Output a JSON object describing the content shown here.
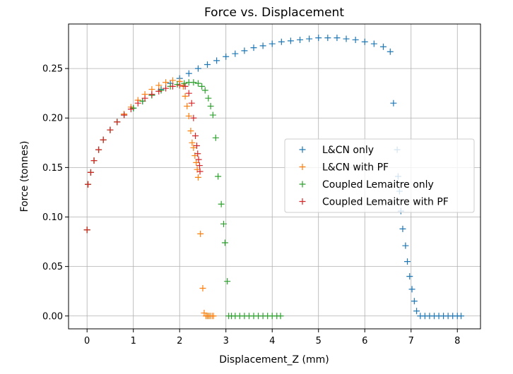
{
  "chart_data": {
    "type": "scatter",
    "title": "Force vs. Displacement",
    "xlabel": "Displacement_Z (mm)",
    "ylabel": "Force (tonnes)",
    "xlim": [
      -0.4,
      8.5
    ],
    "ylim": [
      -0.013,
      0.295
    ],
    "x_ticks": [
      "0",
      "1",
      "2",
      "3",
      "4",
      "5",
      "6",
      "7",
      "8"
    ],
    "y_ticks": [
      "0.00",
      "0.05",
      "0.10",
      "0.15",
      "0.20",
      "0.25"
    ],
    "grid": true,
    "legend_position": "center-right",
    "marker": "+",
    "series": [
      {
        "name": "L&CN only",
        "color": "#1f77b4",
        "points": [
          [
            0.0,
            0.087
          ],
          [
            0.02,
            0.133
          ],
          [
            0.08,
            0.145
          ],
          [
            0.15,
            0.157
          ],
          [
            0.25,
            0.168
          ],
          [
            0.35,
            0.178
          ],
          [
            0.5,
            0.188
          ],
          [
            0.65,
            0.196
          ],
          [
            0.8,
            0.203
          ],
          [
            1.0,
            0.21
          ],
          [
            1.2,
            0.217
          ],
          [
            1.4,
            0.223
          ],
          [
            1.6,
            0.229
          ],
          [
            1.8,
            0.235
          ],
          [
            2.0,
            0.24
          ],
          [
            2.2,
            0.245
          ],
          [
            2.4,
            0.25
          ],
          [
            2.6,
            0.254
          ],
          [
            2.8,
            0.258
          ],
          [
            3.0,
            0.262
          ],
          [
            3.2,
            0.265
          ],
          [
            3.4,
            0.268
          ],
          [
            3.6,
            0.271
          ],
          [
            3.8,
            0.273
          ],
          [
            4.0,
            0.275
          ],
          [
            4.2,
            0.277
          ],
          [
            4.4,
            0.278
          ],
          [
            4.6,
            0.279
          ],
          [
            4.8,
            0.28
          ],
          [
            5.0,
            0.281
          ],
          [
            5.2,
            0.281
          ],
          [
            5.4,
            0.281
          ],
          [
            5.6,
            0.28
          ],
          [
            5.8,
            0.279
          ],
          [
            6.0,
            0.277
          ],
          [
            6.2,
            0.275
          ],
          [
            6.4,
            0.272
          ],
          [
            6.55,
            0.267
          ],
          [
            6.62,
            0.215
          ],
          [
            6.7,
            0.168
          ],
          [
            6.72,
            0.141
          ],
          [
            6.75,
            0.126
          ],
          [
            6.78,
            0.106
          ],
          [
            6.82,
            0.088
          ],
          [
            6.88,
            0.071
          ],
          [
            6.92,
            0.055
          ],
          [
            6.97,
            0.04
          ],
          [
            7.02,
            0.027
          ],
          [
            7.07,
            0.015
          ],
          [
            7.12,
            0.005
          ],
          [
            7.2,
            0.0
          ],
          [
            7.3,
            0.0
          ],
          [
            7.4,
            0.0
          ],
          [
            7.5,
            0.0
          ],
          [
            7.6,
            0.0
          ],
          [
            7.7,
            0.0
          ],
          [
            7.8,
            0.0
          ],
          [
            7.9,
            0.0
          ],
          [
            8.0,
            0.0
          ],
          [
            8.08,
            0.0
          ]
        ]
      },
      {
        "name": "L&CN with PF",
        "color": "#ff7f0e",
        "points": [
          [
            0.0,
            0.087
          ],
          [
            0.02,
            0.133
          ],
          [
            0.08,
            0.145
          ],
          [
            0.15,
            0.157
          ],
          [
            0.25,
            0.168
          ],
          [
            0.35,
            0.178
          ],
          [
            0.5,
            0.188
          ],
          [
            0.65,
            0.196
          ],
          [
            0.8,
            0.204
          ],
          [
            0.95,
            0.211
          ],
          [
            1.1,
            0.218
          ],
          [
            1.25,
            0.224
          ],
          [
            1.4,
            0.229
          ],
          [
            1.55,
            0.233
          ],
          [
            1.7,
            0.236
          ],
          [
            1.85,
            0.238
          ],
          [
            2.0,
            0.237
          ],
          [
            2.08,
            0.232
          ],
          [
            2.12,
            0.222
          ],
          [
            2.16,
            0.212
          ],
          [
            2.2,
            0.202
          ],
          [
            2.24,
            0.187
          ],
          [
            2.27,
            0.175
          ],
          [
            2.3,
            0.17
          ],
          [
            2.33,
            0.162
          ],
          [
            2.36,
            0.155
          ],
          [
            2.38,
            0.148
          ],
          [
            2.4,
            0.14
          ],
          [
            2.45,
            0.083
          ],
          [
            2.5,
            0.028
          ],
          [
            2.53,
            0.003
          ],
          [
            2.57,
            0.0
          ],
          [
            2.6,
            0.0
          ],
          [
            2.63,
            0.0
          ],
          [
            2.66,
            0.0
          ],
          [
            2.7,
            0.0
          ],
          [
            2.73,
            0.0
          ]
        ]
      },
      {
        "name": "Coupled Lemaitre only",
        "color": "#2ca02c",
        "points": [
          [
            0.0,
            0.087
          ],
          [
            0.02,
            0.133
          ],
          [
            0.08,
            0.145
          ],
          [
            0.15,
            0.157
          ],
          [
            0.25,
            0.168
          ],
          [
            0.35,
            0.178
          ],
          [
            0.5,
            0.188
          ],
          [
            0.65,
            0.196
          ],
          [
            0.8,
            0.203
          ],
          [
            1.0,
            0.21
          ],
          [
            1.2,
            0.217
          ],
          [
            1.4,
            0.223
          ],
          [
            1.6,
            0.228
          ],
          [
            1.8,
            0.232
          ],
          [
            1.95,
            0.234
          ],
          [
            2.1,
            0.235
          ],
          [
            2.2,
            0.236
          ],
          [
            2.3,
            0.236
          ],
          [
            2.4,
            0.235
          ],
          [
            2.48,
            0.232
          ],
          [
            2.55,
            0.228
          ],
          [
            2.62,
            0.22
          ],
          [
            2.67,
            0.212
          ],
          [
            2.72,
            0.203
          ],
          [
            2.78,
            0.18
          ],
          [
            2.83,
            0.141
          ],
          [
            2.9,
            0.113
          ],
          [
            2.95,
            0.093
          ],
          [
            2.98,
            0.074
          ],
          [
            3.03,
            0.035
          ],
          [
            3.06,
            0.0
          ],
          [
            3.12,
            0.0
          ],
          [
            3.2,
            0.0
          ],
          [
            3.3,
            0.0
          ],
          [
            3.4,
            0.0
          ],
          [
            3.5,
            0.0
          ],
          [
            3.6,
            0.0
          ],
          [
            3.7,
            0.0
          ],
          [
            3.8,
            0.0
          ],
          [
            3.9,
            0.0
          ],
          [
            4.0,
            0.0
          ],
          [
            4.1,
            0.0
          ],
          [
            4.18,
            0.0
          ]
        ]
      },
      {
        "name": "Coupled Lemaitre with PF",
        "color": "#d62728",
        "points": [
          [
            0.0,
            0.087
          ],
          [
            0.02,
            0.133
          ],
          [
            0.08,
            0.145
          ],
          [
            0.15,
            0.157
          ],
          [
            0.25,
            0.168
          ],
          [
            0.35,
            0.178
          ],
          [
            0.5,
            0.188
          ],
          [
            0.65,
            0.196
          ],
          [
            0.8,
            0.203
          ],
          [
            0.95,
            0.209
          ],
          [
            1.1,
            0.215
          ],
          [
            1.25,
            0.22
          ],
          [
            1.4,
            0.224
          ],
          [
            1.55,
            0.227
          ],
          [
            1.7,
            0.23
          ],
          [
            1.85,
            0.232
          ],
          [
            2.0,
            0.233
          ],
          [
            2.12,
            0.232
          ],
          [
            2.2,
            0.225
          ],
          [
            2.26,
            0.215
          ],
          [
            2.3,
            0.2
          ],
          [
            2.34,
            0.182
          ],
          [
            2.37,
            0.172
          ],
          [
            2.39,
            0.164
          ],
          [
            2.41,
            0.158
          ],
          [
            2.43,
            0.152
          ],
          [
            2.44,
            0.146
          ]
        ]
      }
    ]
  }
}
